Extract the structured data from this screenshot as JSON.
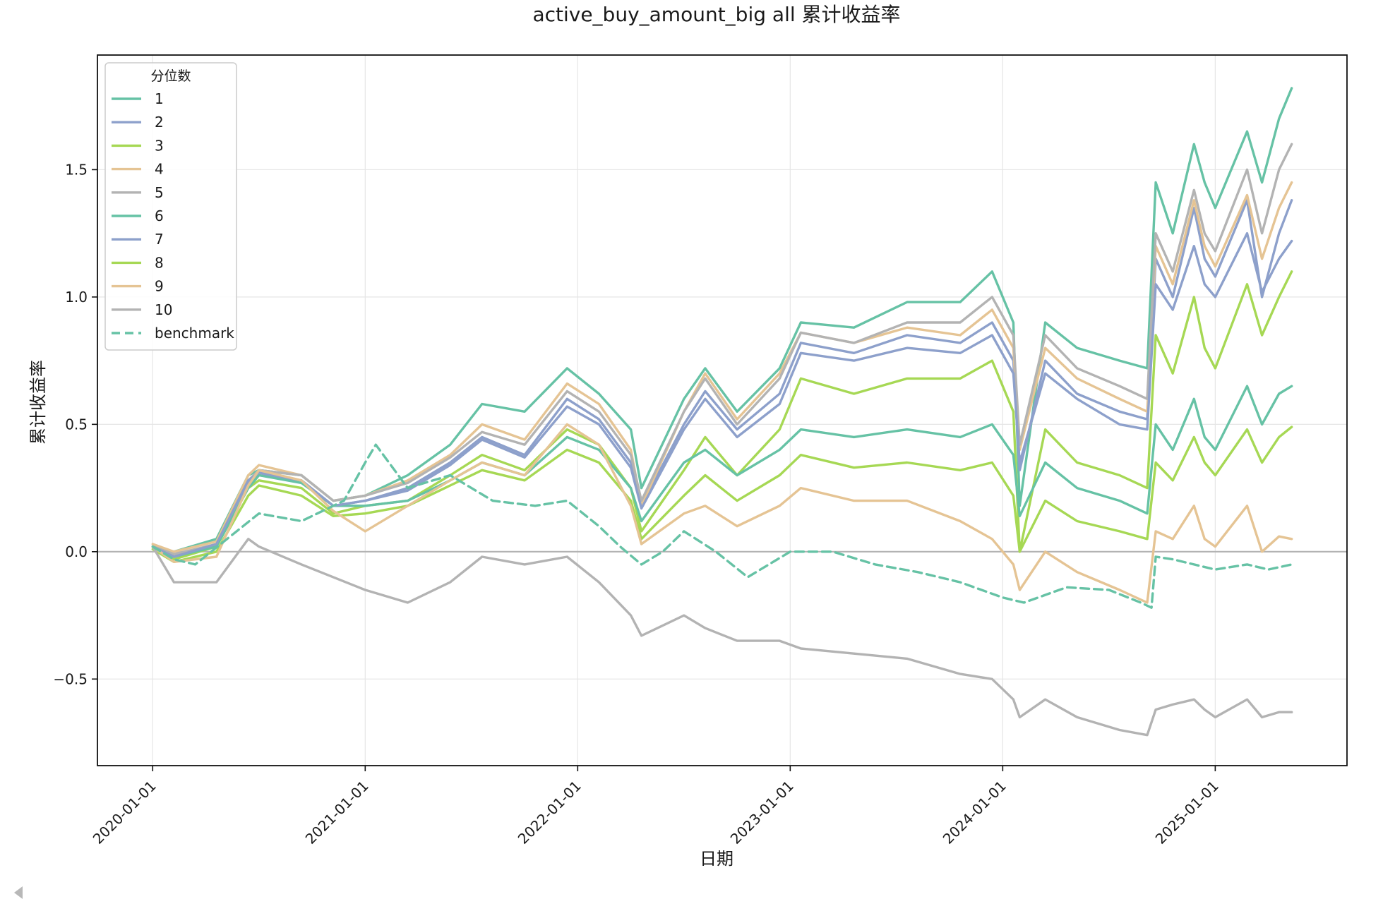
{
  "chart_data": {
    "type": "line",
    "title": "active_buy_amount_big all 累计收益率",
    "xlabel": "日期",
    "ylabel": "累计收益率",
    "x_tick_labels": [
      "2020-01-01",
      "2021-01-01",
      "2022-01-01",
      "2023-01-01",
      "2024-01-01",
      "2025-01-01"
    ],
    "x_tick_years": [
      2020.0,
      2021.0,
      2022.0,
      2023.0,
      2024.0,
      2025.0
    ],
    "y_tick_labels": [
      "−0.5",
      "0.0",
      "0.5",
      "1.0",
      "1.5"
    ],
    "y_tick_values": [
      -0.5,
      0.0,
      0.5,
      1.0,
      1.5
    ],
    "xlim_years": [
      2019.74,
      2025.62
    ],
    "ylim": [
      -0.84,
      1.95
    ],
    "grid": true,
    "legend_placement": "top-left",
    "legend_title": "分位数",
    "series_date_format": "fractional year",
    "series": [
      {
        "name": "1",
        "color": "#66c2a5",
        "dash": false,
        "x": [
          2020.0,
          2020.1,
          2020.3,
          2020.45,
          2020.5,
          2020.7,
          2020.85,
          2021.0,
          2021.2,
          2021.4,
          2021.55,
          2021.75,
          2021.95,
          2022.1,
          2022.25,
          2022.3,
          2022.5,
          2022.6,
          2022.75,
          2022.95,
          2023.05,
          2023.3,
          2023.55,
          2023.8,
          2023.95,
          2024.05,
          2024.08,
          2024.2,
          2024.35,
          2024.55,
          2024.68,
          2024.72,
          2024.8,
          2024.9,
          2024.95,
          2025.0,
          2025.15,
          2025.22,
          2025.3,
          2025.36
        ],
        "y": [
          0.02,
          0.0,
          0.05,
          0.3,
          0.32,
          0.3,
          0.2,
          0.22,
          0.3,
          0.42,
          0.58,
          0.55,
          0.72,
          0.62,
          0.48,
          0.25,
          0.6,
          0.72,
          0.55,
          0.72,
          0.9,
          0.88,
          0.98,
          0.98,
          1.1,
          0.9,
          0.18,
          0.9,
          0.8,
          0.75,
          0.72,
          1.45,
          1.25,
          1.6,
          1.45,
          1.35,
          1.65,
          1.45,
          1.7,
          1.82
        ]
      },
      {
        "name": "2",
        "color": "#8da0cb",
        "dash": false,
        "x": [
          2020.0,
          2020.1,
          2020.3,
          2020.45,
          2020.5,
          2020.7,
          2020.85,
          2021.0,
          2021.2,
          2021.4,
          2021.55,
          2021.75,
          2021.95,
          2022.1,
          2022.25,
          2022.3,
          2022.5,
          2022.6,
          2022.75,
          2022.95,
          2023.05,
          2023.3,
          2023.55,
          2023.8,
          2023.95,
          2024.05,
          2024.08,
          2024.2,
          2024.35,
          2024.55,
          2024.68,
          2024.72,
          2024.8,
          2024.9,
          2024.95,
          2025.0,
          2025.15,
          2025.22,
          2025.3,
          2025.36
        ],
        "y": [
          0.02,
          -0.02,
          0.03,
          0.27,
          0.3,
          0.28,
          0.18,
          0.2,
          0.25,
          0.35,
          0.45,
          0.38,
          0.6,
          0.52,
          0.35,
          0.18,
          0.5,
          0.63,
          0.48,
          0.62,
          0.82,
          0.78,
          0.85,
          0.82,
          0.9,
          0.75,
          0.32,
          0.75,
          0.62,
          0.55,
          0.52,
          1.15,
          1.0,
          1.35,
          1.15,
          1.08,
          1.38,
          1.0,
          1.25,
          1.38
        ]
      },
      {
        "name": "3",
        "color": "#a6d854",
        "dash": false,
        "x": [
          2020.0,
          2020.1,
          2020.3,
          2020.45,
          2020.5,
          2020.7,
          2020.85,
          2021.0,
          2021.2,
          2021.4,
          2021.55,
          2021.75,
          2021.95,
          2022.1,
          2022.25,
          2022.3,
          2022.5,
          2022.6,
          2022.75,
          2022.95,
          2023.05,
          2023.3,
          2023.55,
          2023.8,
          2023.95,
          2024.05,
          2024.08,
          2024.2,
          2024.35,
          2024.55,
          2024.68,
          2024.72,
          2024.8,
          2024.9,
          2024.95,
          2025.0,
          2025.15,
          2025.22,
          2025.3,
          2025.36
        ],
        "y": [
          0.02,
          -0.03,
          0.02,
          0.25,
          0.28,
          0.25,
          0.15,
          0.18,
          0.2,
          0.3,
          0.38,
          0.32,
          0.48,
          0.42,
          0.25,
          0.08,
          0.32,
          0.45,
          0.3,
          0.48,
          0.68,
          0.62,
          0.68,
          0.68,
          0.75,
          0.55,
          0.0,
          0.48,
          0.35,
          0.3,
          0.25,
          0.85,
          0.7,
          1.0,
          0.8,
          0.72,
          1.05,
          0.85,
          1.0,
          1.1
        ]
      },
      {
        "name": "4",
        "color": "#e5c494",
        "dash": false,
        "x": [
          2020.0,
          2020.1,
          2020.3,
          2020.45,
          2020.5,
          2020.7,
          2020.85,
          2021.0,
          2021.2,
          2021.4,
          2021.55,
          2021.75,
          2021.95,
          2022.1,
          2022.25,
          2022.3,
          2022.5,
          2022.6,
          2022.75,
          2022.95,
          2023.05,
          2023.3,
          2023.55,
          2023.8,
          2023.95,
          2024.05,
          2024.08,
          2024.2,
          2024.35,
          2024.55,
          2024.68,
          2024.72,
          2024.8,
          2024.9,
          2024.95,
          2025.0,
          2025.15,
          2025.22,
          2025.3,
          2025.36
        ],
        "y": [
          0.03,
          0.0,
          0.04,
          0.3,
          0.34,
          0.3,
          0.2,
          0.22,
          0.28,
          0.38,
          0.5,
          0.44,
          0.66,
          0.58,
          0.4,
          0.18,
          0.55,
          0.7,
          0.52,
          0.7,
          0.86,
          0.82,
          0.88,
          0.85,
          0.95,
          0.8,
          0.4,
          0.8,
          0.68,
          0.6,
          0.55,
          1.2,
          1.05,
          1.38,
          1.2,
          1.12,
          1.4,
          1.15,
          1.35,
          1.45
        ]
      },
      {
        "name": "5",
        "color": "#b3b3b3",
        "dash": false,
        "x": [
          2020.0,
          2020.1,
          2020.3,
          2020.45,
          2020.5,
          2020.7,
          2020.85,
          2021.0,
          2021.2,
          2021.4,
          2021.55,
          2021.75,
          2021.95,
          2022.1,
          2022.25,
          2022.3,
          2022.5,
          2022.6,
          2022.75,
          2022.95,
          2023.05,
          2023.3,
          2023.55,
          2023.8,
          2023.95,
          2024.05,
          2024.08,
          2024.2,
          2024.35,
          2024.55,
          2024.68,
          2024.72,
          2024.8,
          2024.9,
          2024.95,
          2025.0,
          2025.15,
          2025.22,
          2025.3,
          2025.36
        ],
        "y": [
          0.02,
          -0.01,
          0.03,
          0.28,
          0.32,
          0.3,
          0.2,
          0.22,
          0.27,
          0.37,
          0.47,
          0.42,
          0.63,
          0.55,
          0.38,
          0.2,
          0.55,
          0.68,
          0.5,
          0.68,
          0.86,
          0.82,
          0.9,
          0.9,
          1.0,
          0.85,
          0.42,
          0.85,
          0.72,
          0.65,
          0.6,
          1.25,
          1.1,
          1.42,
          1.25,
          1.18,
          1.5,
          1.25,
          1.5,
          1.6
        ]
      },
      {
        "name": "6",
        "color": "#66c2a5",
        "dash": false,
        "x": [
          2020.0,
          2020.1,
          2020.3,
          2020.45,
          2020.5,
          2020.7,
          2020.85,
          2021.0,
          2021.2,
          2021.4,
          2021.55,
          2021.75,
          2021.95,
          2022.1,
          2022.25,
          2022.3,
          2022.5,
          2022.6,
          2022.75,
          2022.95,
          2023.05,
          2023.3,
          2023.55,
          2023.8,
          2023.95,
          2024.05,
          2024.08,
          2024.2,
          2024.35,
          2024.55,
          2024.68,
          2024.72,
          2024.8,
          2024.9,
          2024.95,
          2025.0,
          2025.15,
          2025.22,
          2025.3,
          2025.36
        ],
        "y": [
          0.02,
          -0.02,
          0.02,
          0.25,
          0.3,
          0.27,
          0.18,
          0.18,
          0.2,
          0.28,
          0.35,
          0.3,
          0.45,
          0.4,
          0.25,
          0.12,
          0.35,
          0.4,
          0.3,
          0.4,
          0.48,
          0.45,
          0.48,
          0.45,
          0.5,
          0.38,
          0.14,
          0.35,
          0.25,
          0.2,
          0.15,
          0.5,
          0.4,
          0.6,
          0.45,
          0.4,
          0.65,
          0.5,
          0.62,
          0.65
        ]
      },
      {
        "name": "7",
        "color": "#8da0cb",
        "dash": false,
        "x": [
          2020.0,
          2020.1,
          2020.3,
          2020.45,
          2020.5,
          2020.7,
          2020.85,
          2021.0,
          2021.2,
          2021.4,
          2021.55,
          2021.75,
          2021.95,
          2022.1,
          2022.25,
          2022.3,
          2022.5,
          2022.6,
          2022.75,
          2022.95,
          2023.05,
          2023.3,
          2023.55,
          2023.8,
          2023.95,
          2024.05,
          2024.08,
          2024.2,
          2024.35,
          2024.55,
          2024.68,
          2024.72,
          2024.8,
          2024.9,
          2024.95,
          2025.0,
          2025.15,
          2025.22,
          2025.3,
          2025.36
        ],
        "y": [
          0.02,
          -0.02,
          0.03,
          0.28,
          0.31,
          0.28,
          0.18,
          0.2,
          0.24,
          0.34,
          0.44,
          0.37,
          0.57,
          0.5,
          0.33,
          0.17,
          0.48,
          0.6,
          0.45,
          0.58,
          0.78,
          0.75,
          0.8,
          0.78,
          0.85,
          0.7,
          0.35,
          0.7,
          0.6,
          0.5,
          0.48,
          1.05,
          0.95,
          1.2,
          1.05,
          1.0,
          1.25,
          1.02,
          1.15,
          1.22
        ]
      },
      {
        "name": "8",
        "color": "#a6d854",
        "dash": false,
        "x": [
          2020.0,
          2020.1,
          2020.3,
          2020.45,
          2020.5,
          2020.7,
          2020.85,
          2021.0,
          2021.2,
          2021.4,
          2021.55,
          2021.75,
          2021.95,
          2022.1,
          2022.25,
          2022.3,
          2022.5,
          2022.6,
          2022.75,
          2022.95,
          2023.05,
          2023.3,
          2023.55,
          2023.8,
          2023.95,
          2024.05,
          2024.08,
          2024.2,
          2024.35,
          2024.55,
          2024.68,
          2024.72,
          2024.8,
          2024.9,
          2024.95,
          2025.0,
          2025.15,
          2025.22,
          2025.3,
          2025.36
        ],
        "y": [
          0.01,
          -0.04,
          0.0,
          0.22,
          0.26,
          0.22,
          0.14,
          0.15,
          0.18,
          0.26,
          0.32,
          0.28,
          0.4,
          0.35,
          0.2,
          0.05,
          0.22,
          0.3,
          0.2,
          0.3,
          0.38,
          0.33,
          0.35,
          0.32,
          0.35,
          0.22,
          0.0,
          0.2,
          0.12,
          0.08,
          0.05,
          0.35,
          0.28,
          0.45,
          0.35,
          0.3,
          0.48,
          0.35,
          0.45,
          0.49
        ]
      },
      {
        "name": "9",
        "color": "#e5c494",
        "dash": false,
        "x": [
          2020.0,
          2020.1,
          2020.3,
          2020.45,
          2020.5,
          2020.7,
          2020.85,
          2021.0,
          2021.2,
          2021.4,
          2021.55,
          2021.75,
          2021.95,
          2022.1,
          2022.25,
          2022.3,
          2022.5,
          2022.6,
          2022.75,
          2022.95,
          2023.05,
          2023.3,
          2023.55,
          2023.8,
          2023.95,
          2024.05,
          2024.08,
          2024.2,
          2024.35,
          2024.55,
          2024.68,
          2024.72,
          2024.8,
          2024.9,
          2024.95,
          2025.0,
          2025.15,
          2025.22,
          2025.3,
          2025.36
        ],
        "y": [
          0.02,
          -0.04,
          -0.02,
          0.26,
          0.32,
          0.28,
          0.16,
          0.08,
          0.18,
          0.28,
          0.35,
          0.3,
          0.5,
          0.42,
          0.18,
          0.03,
          0.15,
          0.18,
          0.1,
          0.18,
          0.25,
          0.2,
          0.2,
          0.12,
          0.05,
          -0.05,
          -0.15,
          0.0,
          -0.08,
          -0.15,
          -0.2,
          0.08,
          0.05,
          0.18,
          0.05,
          0.02,
          0.18,
          0.0,
          0.06,
          0.05
        ]
      },
      {
        "name": "10",
        "color": "#b3b3b3",
        "dash": false,
        "x": [
          2020.0,
          2020.1,
          2020.3,
          2020.45,
          2020.5,
          2020.7,
          2020.85,
          2021.0,
          2021.2,
          2021.4,
          2021.55,
          2021.75,
          2021.95,
          2022.1,
          2022.25,
          2022.3,
          2022.5,
          2022.6,
          2022.75,
          2022.95,
          2023.05,
          2023.3,
          2023.55,
          2023.8,
          2023.95,
          2024.05,
          2024.08,
          2024.2,
          2024.35,
          2024.55,
          2024.68,
          2024.72,
          2024.8,
          2024.9,
          2024.95,
          2025.0,
          2025.15,
          2025.22,
          2025.3,
          2025.36
        ],
        "y": [
          0.02,
          -0.12,
          -0.12,
          0.05,
          0.02,
          -0.05,
          -0.1,
          -0.15,
          -0.2,
          -0.12,
          -0.02,
          -0.05,
          -0.02,
          -0.12,
          -0.25,
          -0.33,
          -0.25,
          -0.3,
          -0.35,
          -0.35,
          -0.38,
          -0.4,
          -0.42,
          -0.48,
          -0.5,
          -0.58,
          -0.65,
          -0.58,
          -0.65,
          -0.7,
          -0.72,
          -0.62,
          -0.6,
          -0.58,
          -0.62,
          -0.65,
          -0.58,
          -0.65,
          -0.63,
          -0.63
        ]
      },
      {
        "name": "benchmark",
        "color": "#66c2a5",
        "dash": true,
        "x": [
          2020.0,
          2020.1,
          2020.2,
          2020.35,
          2020.5,
          2020.7,
          2020.9,
          2021.0,
          2021.05,
          2021.2,
          2021.4,
          2021.5,
          2021.6,
          2021.8,
          2021.95,
          2022.1,
          2022.2,
          2022.3,
          2022.4,
          2022.5,
          2022.65,
          2022.8,
          2023.0,
          2023.2,
          2023.4,
          2023.6,
          2023.8,
          2024.0,
          2024.1,
          2024.3,
          2024.5,
          2024.65,
          2024.7,
          2024.72,
          2024.8,
          2024.9,
          2025.0,
          2025.15,
          2025.25,
          2025.36
        ],
        "y": [
          0.02,
          -0.03,
          -0.05,
          0.05,
          0.15,
          0.12,
          0.2,
          0.35,
          0.42,
          0.25,
          0.3,
          0.25,
          0.2,
          0.18,
          0.2,
          0.1,
          0.02,
          -0.05,
          0.0,
          0.08,
          0.0,
          -0.1,
          0.0,
          0.0,
          -0.05,
          -0.08,
          -0.12,
          -0.18,
          -0.2,
          -0.14,
          -0.15,
          -0.2,
          -0.22,
          -0.02,
          -0.03,
          -0.05,
          -0.07,
          -0.05,
          -0.07,
          -0.05
        ]
      }
    ]
  }
}
